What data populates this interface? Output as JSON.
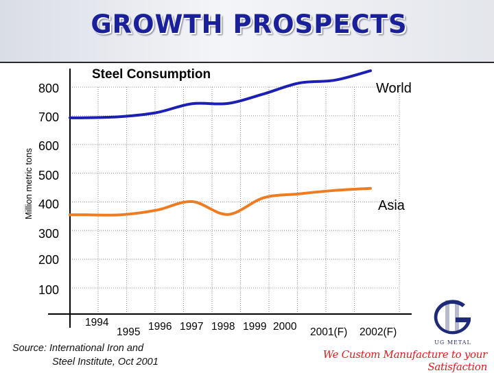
{
  "slide": {
    "title": "GROWTH PROSPECTS",
    "source_line1": "Source: International Iron and",
    "source_line2": "Steel Institute, Oct 2001",
    "tagline": "We Custom Manufacture to your Satisfaction",
    "logo_text": "UG METAL",
    "logo_icon": "ug-logo-icon",
    "title_color": "#1a1f9a",
    "tagline_color": "#e01b1b"
  },
  "chart_data": {
    "type": "line",
    "title": "Steel Consumption",
    "ylabel": "Million metric tons",
    "xlabel": "",
    "ylim": [
      0,
      800
    ],
    "y_ticks": [
      100,
      200,
      300,
      400,
      500,
      600,
      700,
      800
    ],
    "categories": [
      "1994",
      "1995",
      "1996",
      "1997",
      "1998",
      "1999",
      "2000",
      "2001(F)",
      "2002(F)"
    ],
    "grid": true,
    "series": [
      {
        "name": "World",
        "color": "#1c1fb2",
        "values": [
          693,
          697,
          711,
          742,
          743,
          776,
          814,
          824,
          857
        ]
      },
      {
        "name": "Asia",
        "color": "#ee7c22",
        "values": [
          355,
          355,
          371,
          401,
          356,
          414,
          428,
          440,
          447
        ]
      }
    ]
  }
}
